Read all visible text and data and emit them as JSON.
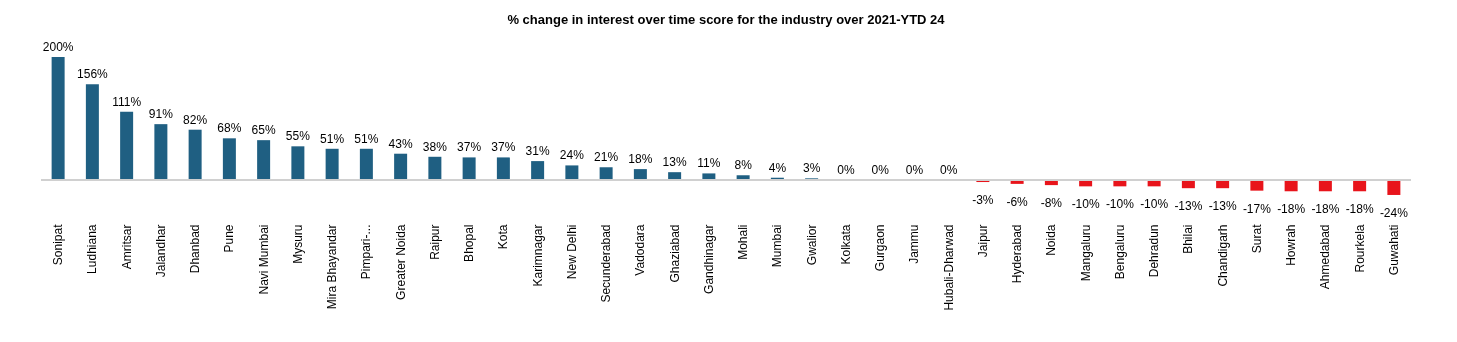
{
  "chart_data": {
    "type": "bar",
    "title": "% change in interest over time score for the industry over 2021-YTD 24",
    "categories": [
      "Sonipat",
      "Ludhiana",
      "Amritsar",
      "Jalandhar",
      "Dhanbad",
      "Pune",
      "Navi Mumbai",
      "Mysuru",
      "Mira Bhayandar",
      "Pimpari-...",
      "Greater Noida",
      "Raipur",
      "Bhopal",
      "Kota",
      "Karimnagar",
      "New Delhi",
      "Secunderabad",
      "Vadodara",
      "Ghaziabad",
      "Gandhinagar",
      "Mohali",
      "Mumbai",
      "Gwalior",
      "Kolkata",
      "Gurgaon",
      "Jammu",
      "Hubali-Dharwad",
      "Jaipur",
      "Hyderabad",
      "Noida",
      "Mangaluru",
      "Bengaluru",
      "Dehradun",
      "Bhilai",
      "Chandigarh",
      "Surat",
      "Howrah",
      "Ahmedabad",
      "Rourkela",
      "Guwahati"
    ],
    "values": [
      200,
      156,
      111,
      91,
      82,
      68,
      65,
      55,
      51,
      51,
      43,
      38,
      37,
      37,
      31,
      24,
      21,
      18,
      13,
      11,
      8,
      4,
      3,
      0,
      0,
      0,
      0,
      -3,
      -6,
      -8,
      -10,
      -10,
      -10,
      -13,
      -13,
      -17,
      -18,
      -18,
      -18,
      -24
    ],
    "colors": [
      "#1f5f82",
      "#1f5f82",
      "#1f5f82",
      "#1f5f82",
      "#1f5f82",
      "#1f5f82",
      "#1f5f82",
      "#1f5f82",
      "#1f5f82",
      "#1f5f82",
      "#1f5f82",
      "#1f5f82",
      "#1f5f82",
      "#1f5f82",
      "#1f5f82",
      "#1f5f82",
      "#1f5f82",
      "#1f5f82",
      "#1f5f82",
      "#1f5f82",
      "#1f5f82",
      "#1f5f82",
      "#1f5f82",
      "#1f5f82",
      "#1f5f82",
      "#1f5f82",
      "#1f5f82",
      "#e8141b",
      "#e8141b",
      "#e8141b",
      "#e8141b",
      "#e8141b",
      "#e8141b",
      "#e8141b",
      "#e8141b",
      "#e8141b",
      "#e8141b",
      "#e8141b",
      "#e8141b",
      "#e8141b"
    ],
    "value_labels": [
      "200%",
      "156%",
      "111%",
      "91%",
      "82%",
      "68%",
      "65%",
      "55%",
      "51%",
      "51%",
      "43%",
      "38%",
      "37%",
      "37%",
      "31%",
      "24%",
      "21%",
      "18%",
      "13%",
      "11%",
      "8%",
      "4%",
      "3%",
      "0%",
      "0%",
      "0%",
      "0%",
      "-3%",
      "-6%",
      "-8%",
      "-10%",
      "-10%",
      "-10%",
      "-13%",
      "-13%",
      "-17%",
      "-18%",
      "-18%",
      "-18%",
      "-24%"
    ],
    "grid": false
  }
}
